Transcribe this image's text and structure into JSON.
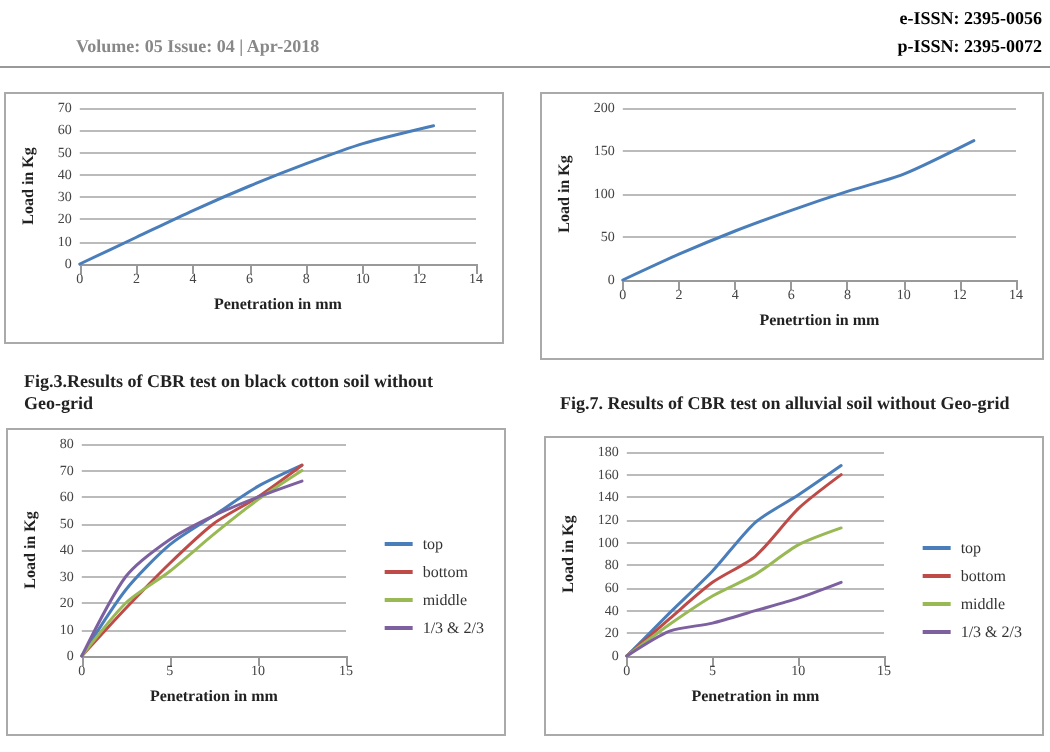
{
  "chart_data": [
    {
      "type": "line",
      "title": "Fig.3.Results of CBR test on black cotton soil without Geo-grid",
      "xlabel": "Penetration in mm",
      "ylabel": "Load in Kg",
      "annotations": [
        "Volume: 05 Issue: 04 | Apr-2018",
        "e-ISSN: 2395-0056",
        "p-ISSN: 2395-0072"
      ],
      "x": [
        0,
        2,
        4,
        6,
        8,
        10,
        12.5
      ],
      "series": [
        {
          "color": "#4a7ebb",
          "values": [
            0,
            12,
            24,
            35,
            45,
            54,
            62
          ]
        }
      ],
      "xlim": [
        0,
        14
      ],
      "xticks": [
        0,
        2,
        4,
        6,
        8,
        10,
        12,
        14
      ],
      "ylim": [
        0,
        70
      ],
      "yticks": [
        0,
        10,
        20,
        30,
        40,
        50,
        60,
        70
      ],
      "grid": "y",
      "legend": false,
      "marker": "none",
      "line_style": "solid"
    },
    {
      "type": "line",
      "title": "Fig.7. Results of CBR test on alluvial soil without Geo-grid",
      "xlabel": "Penetrtion in mm",
      "ylabel": "Load in Kg",
      "x": [
        0,
        2,
        4,
        6,
        8,
        10,
        12.5
      ],
      "series": [
        {
          "color": "#4a7ebb",
          "values": [
            0,
            30,
            57,
            81,
            103,
            123,
            162
          ]
        }
      ],
      "xlim": [
        0,
        14
      ],
      "xticks": [
        0,
        2,
        4,
        6,
        8,
        10,
        12,
        14
      ],
      "ylim": [
        0,
        200
      ],
      "yticks": [
        0,
        50,
        100,
        150,
        200
      ],
      "grid": "y",
      "legend": false,
      "marker": "none",
      "line_style": "solid"
    },
    {
      "type": "line",
      "xlabel": "Penetration in mm",
      "ylabel": "Load in Kg",
      "x": [
        0,
        2.5,
        5,
        7.5,
        10,
        12.5
      ],
      "series": [
        {
          "name": "top",
          "color": "#4a7ebb",
          "values": [
            0,
            25,
            42,
            53,
            64,
            72
          ]
        },
        {
          "name": "bottom",
          "color": "#be4b48",
          "values": [
            0,
            18,
            35,
            50,
            60,
            72
          ]
        },
        {
          "name": "middle",
          "color": "#98b954",
          "values": [
            0,
            20,
            32,
            46,
            59,
            70
          ]
        },
        {
          "name": "1/3 & 2/3",
          "color": "#7d60a0",
          "values": [
            0,
            30,
            44,
            53,
            60,
            66
          ]
        }
      ],
      "xlim": [
        0,
        15
      ],
      "xticks": [
        0,
        5,
        10,
        15
      ],
      "ylim": [
        0,
        80
      ],
      "yticks": [
        0,
        10,
        20,
        30,
        40,
        50,
        60,
        70,
        80
      ],
      "grid": "y",
      "legend": "right",
      "marker": "none",
      "line_style": "solid"
    },
    {
      "type": "line",
      "xlabel": "Penetration in mm",
      "ylabel": "Load in Kg",
      "x": [
        0,
        2.5,
        5,
        7.5,
        10,
        12.5
      ],
      "series": [
        {
          "name": "top",
          "color": "#4a7ebb",
          "values": [
            0,
            38,
            75,
            118,
            142,
            168
          ]
        },
        {
          "name": "bottom",
          "color": "#be4b48",
          "values": [
            0,
            33,
            65,
            88,
            130,
            160
          ]
        },
        {
          "name": "middle",
          "color": "#98b954",
          "values": [
            0,
            28,
            53,
            72,
            98,
            113
          ]
        },
        {
          "name": "1/3 & 2/3",
          "color": "#7d60a0",
          "values": [
            0,
            22,
            29,
            40,
            51,
            65
          ]
        }
      ],
      "xlim": [
        0,
        15
      ],
      "xticks": [
        0,
        5,
        10,
        15
      ],
      "ylim": [
        0,
        180
      ],
      "yticks": [
        0,
        20,
        40,
        60,
        80,
        100,
        120,
        140,
        160,
        180
      ],
      "grid": "y",
      "legend": "right",
      "marker": "none",
      "line_style": "solid"
    }
  ]
}
